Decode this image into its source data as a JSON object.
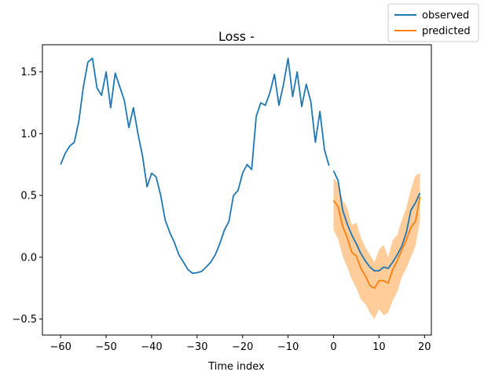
{
  "chart_data": {
    "type": "line",
    "title": "Loss -",
    "xlabel": "Time index",
    "ylabel": "",
    "xlim": [
      -64,
      21.5
    ],
    "ylim": [
      -0.63,
      1.72
    ],
    "xticks": [
      -60,
      -50,
      -40,
      -30,
      -20,
      -10,
      0,
      10,
      20
    ],
    "yticks": [
      -0.5,
      0.0,
      0.5,
      1.0,
      1.5
    ],
    "grid": false,
    "legend": {
      "placement": "top-right",
      "entries": [
        "observed",
        "predicted"
      ]
    },
    "colors": {
      "observed": "#1f77b4",
      "predicted": "#ff7f0e",
      "band": "#ffbb78"
    },
    "series": [
      {
        "name": "observed",
        "segments": [
          {
            "x": [
              -60,
              -59,
              -58,
              -57,
              -56,
              -55,
              -54,
              -53,
              -52,
              -51,
              -50,
              -49,
              -48,
              -47,
              -46,
              -45,
              -44,
              -43,
              -42,
              -41,
              -40,
              -39,
              -38,
              -37,
              -36,
              -35,
              -34,
              -33,
              -32,
              -31,
              -30,
              -29,
              -28,
              -27,
              -26,
              -25,
              -24,
              -23,
              -22,
              -21,
              -20,
              -19,
              -18,
              -17,
              -16,
              -15,
              -14,
              -13,
              -12,
              -11,
              -10,
              -9,
              -8,
              -7,
              -6,
              -5,
              -4,
              -3,
              -2,
              -1
            ],
            "y": [
              0.75,
              0.84,
              0.9,
              0.93,
              1.1,
              1.38,
              1.58,
              1.61,
              1.37,
              1.31,
              1.5,
              1.21,
              1.49,
              1.38,
              1.27,
              1.05,
              1.21,
              1.0,
              0.82,
              0.57,
              0.68,
              0.65,
              0.5,
              0.3,
              0.2,
              0.12,
              0.02,
              -0.04,
              -0.1,
              -0.13,
              -0.125,
              -0.115,
              -0.08,
              -0.04,
              0.02,
              0.11,
              0.22,
              0.29,
              0.5,
              0.54,
              0.68,
              0.75,
              0.71,
              1.14,
              1.25,
              1.23,
              1.33,
              1.48,
              1.23,
              1.4,
              1.61,
              1.3,
              1.5,
              1.22,
              1.4,
              1.26,
              0.93,
              1.18,
              0.87,
              0.74
            ]
          },
          {
            "x": [
              0,
              1,
              2,
              3,
              4,
              5,
              6,
              7,
              8,
              9,
              10,
              11,
              12,
              13,
              14,
              15,
              16,
              17,
              18,
              19
            ],
            "y": [
              0.7,
              0.62,
              0.38,
              0.27,
              0.18,
              0.11,
              0.03,
              -0.03,
              -0.08,
              -0.11,
              -0.11,
              -0.08,
              -0.09,
              -0.04,
              0.02,
              0.09,
              0.2,
              0.38,
              0.44,
              0.52
            ]
          }
        ]
      },
      {
        "name": "predicted",
        "x": [
          0,
          1,
          2,
          3,
          4,
          5,
          6,
          7,
          8,
          9,
          10,
          11,
          12,
          13,
          14,
          15,
          16,
          17,
          18,
          19
        ],
        "y": [
          0.46,
          0.41,
          0.25,
          0.16,
          0.04,
          0.01,
          -0.09,
          -0.15,
          -0.23,
          -0.25,
          -0.19,
          -0.19,
          -0.21,
          -0.1,
          -0.03,
          0.06,
          0.14,
          0.24,
          0.29,
          0.49
        ],
        "lower": [
          0.22,
          0.15,
          0.01,
          -0.08,
          -0.18,
          -0.25,
          -0.34,
          -0.38,
          -0.45,
          -0.5,
          -0.42,
          -0.47,
          -0.45,
          -0.35,
          -0.28,
          -0.16,
          -0.09,
          0.0,
          0.09,
          0.3
        ],
        "upper": [
          0.64,
          0.6,
          0.46,
          0.4,
          0.26,
          0.28,
          0.16,
          0.08,
          0.02,
          -0.04,
          0.06,
          0.1,
          0.0,
          0.14,
          0.18,
          0.3,
          0.4,
          0.55,
          0.66,
          0.68
        ]
      }
    ]
  }
}
